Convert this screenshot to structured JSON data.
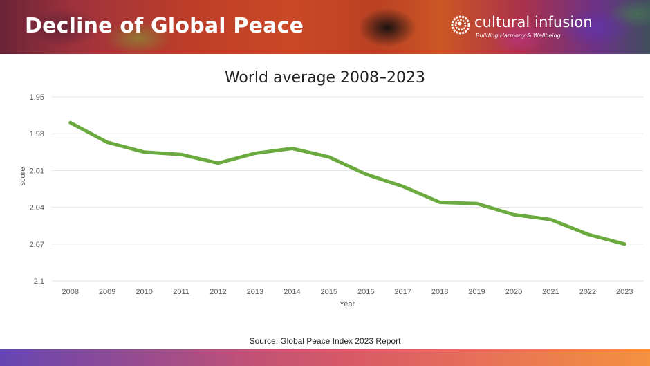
{
  "header": {
    "title": "Decline of Global Peace",
    "logo_name": "cultural infusion",
    "logo_tagline": "Building Harmony & Wellbeing"
  },
  "colors": {
    "line": "#6aaa3f",
    "grid": "#e2e2e2",
    "axis_text": "#595959"
  },
  "chart_data": {
    "type": "line",
    "title": "World average 2008–2023",
    "xlabel": "Year",
    "ylabel": "score",
    "y_inverted": true,
    "ylim": [
      1.95,
      2.1
    ],
    "yticks": [
      "1.95",
      "1.98",
      "2.01",
      "2.04",
      "2.07",
      "2.1"
    ],
    "ytick_values": [
      1.95,
      1.98,
      2.01,
      2.04,
      2.07,
      2.1
    ],
    "grid": true,
    "legend": "none",
    "categories": [
      "2008",
      "2009",
      "2010",
      "2011",
      "2012",
      "2013",
      "2014",
      "2015",
      "2016",
      "2017",
      "2018",
      "2019",
      "2020",
      "2021",
      "2022",
      "2023"
    ],
    "series": [
      {
        "name": "World average",
        "values": [
          1.971,
          1.987,
          1.995,
          1.997,
          2.004,
          1.996,
          1.992,
          1.999,
          2.013,
          2.023,
          2.036,
          2.037,
          2.046,
          2.05,
          2.062,
          2.07
        ]
      }
    ]
  },
  "source": "Source: Global Peace Index 2023 Report"
}
